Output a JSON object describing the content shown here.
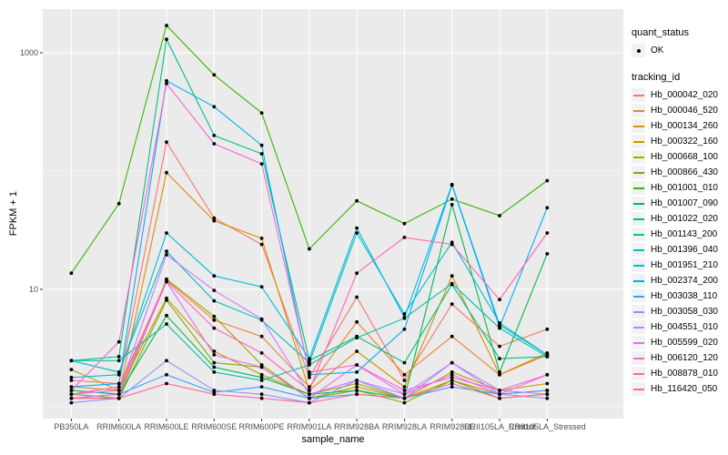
{
  "style": {
    "figure_bg": "#FFFFFF",
    "panel_bg": "#EBEBEB",
    "grid_color": "#FFFFFF",
    "legend_key_bg": "#F2F2F2",
    "tick_label_color": "#4D4D4D",
    "tick_mark_color": "#333333",
    "point_color": "#000000"
  },
  "axes": {
    "y": {
      "title": "FPKM + 1"
    },
    "x": {
      "title": "sample_name"
    }
  },
  "legends": {
    "quant_status": {
      "title": "quant_status",
      "items": [
        {
          "label": "OK",
          "marker": "point",
          "marker_color": "#000000"
        }
      ]
    },
    "tracking_id": {
      "title": "tracking_id"
    }
  },
  "chart_data": {
    "type": "line",
    "title": "",
    "xlabel": "sample_name",
    "ylabel": "FPKM + 1",
    "yscale": "log10",
    "ylim": [
      0.8,
      2400
    ],
    "yticks": [
      10,
      1000
    ],
    "minor_gridlines": [
      1,
      100
    ],
    "grid": true,
    "legend_position": "right",
    "marker": "point-black",
    "x": [
      "PB350LA",
      "RRIM600LA",
      "RRIM600LE",
      "RRIM600SE",
      "RRIM600PE",
      "RRIM901LA",
      "RRIM928BA",
      "RRIM928LA",
      "RRIM928LE",
      "RRII105LA_Control",
      "RRII105LA_Stressed"
    ],
    "series": [
      {
        "name": "Hb_000042_020",
        "color": "#F8766D",
        "values": [
          1.7,
          1.6,
          176,
          40,
          24,
          1.8,
          8.6,
          1.7,
          7.5,
          3.3,
          4.6
        ]
      },
      {
        "name": "Hb_000046_520",
        "color": "#EA8331",
        "values": [
          1.5,
          1.4,
          12,
          5.5,
          4.0,
          1.5,
          5.3,
          1.9,
          4.0,
          1.9,
          2.9
        ]
      },
      {
        "name": "Hb_000134_260",
        "color": "#D89000",
        "values": [
          1.4,
          1.3,
          97,
          38,
          27,
          1.4,
          3.0,
          1.5,
          13,
          1.9,
          2.8
        ]
      },
      {
        "name": "Hb_000322_160",
        "color": "#C09B00",
        "values": [
          2.1,
          1.4,
          8.4,
          3.0,
          1.9,
          1.3,
          1.6,
          1.2,
          2.0,
          1.4,
          1.6
        ]
      },
      {
        "name": "Hb_000668_100",
        "color": "#A3A500",
        "values": [
          1.2,
          1.2,
          12.2,
          5.9,
          2.3,
          1.2,
          1.5,
          1.2,
          1.7,
          1.3,
          1.4
        ]
      },
      {
        "name": "Hb_000866_430",
        "color": "#7CAE00",
        "values": [
          1.3,
          1.2,
          8.1,
          2.4,
          2.2,
          1.2,
          1.4,
          1.1,
          1.7,
          1.2,
          1.3
        ]
      },
      {
        "name": "Hb_001001_010",
        "color": "#39B600",
        "values": [
          13.7,
          53,
          1700,
          650,
          310,
          22,
          56,
          36,
          58,
          42,
          83
        ]
      },
      {
        "name": "Hb_001007_090",
        "color": "#00BB4E",
        "values": [
          1.4,
          1.3,
          6.0,
          2.2,
          1.8,
          1.3,
          1.4,
          1.2,
          52,
          2.0,
          20
        ]
      },
      {
        "name": "Hb_001022_020",
        "color": "#00BF7D",
        "values": [
          2.5,
          2.7,
          1300,
          200,
          140,
          2.5,
          4.0,
          2.4,
          11,
          2.6,
          2.7
        ]
      },
      {
        "name": "Hb_001143_200",
        "color": "#00C1A7",
        "values": [
          2.5,
          2.5,
          5.1,
          2.0,
          1.7,
          2.3,
          3.9,
          5.7,
          11.2,
          4.7,
          2.7
        ]
      },
      {
        "name": "Hb_001396_040",
        "color": "#00BFC4",
        "values": [
          2.5,
          2.0,
          21,
          8.0,
          5.5,
          2.4,
          30,
          6.2,
          25,
          5.2,
          2.8
        ]
      },
      {
        "name": "Hb_001951_210",
        "color": "#00BAE0",
        "values": [
          1.8,
          1.9,
          30,
          13,
          10.5,
          2.6,
          33,
          5.8,
          77,
          5.0,
          2.8
        ]
      },
      {
        "name": "Hb_002374_200",
        "color": "#00B0F6",
        "values": [
          1.5,
          1.6,
          580,
          350,
          165,
          1.9,
          2.0,
          4.6,
          76,
          4.8,
          49
        ]
      },
      {
        "name": "Hb_003038_110",
        "color": "#35A2FF",
        "values": [
          1.2,
          1.3,
          1.9,
          1.35,
          1.5,
          1.2,
          1.3,
          1.2,
          1.5,
          1.3,
          1.4
        ]
      },
      {
        "name": "Hb_003058_030",
        "color": "#9590FF",
        "values": [
          1.1,
          1.2,
          2.5,
          1.4,
          1.3,
          1.1,
          1.7,
          1.2,
          2.4,
          1.3,
          1.2
        ]
      },
      {
        "name": "Hb_004551_010",
        "color": "#C77CFF",
        "values": [
          1.3,
          1.4,
          19.6,
          9.8,
          5.6,
          1.3,
          1.7,
          1.3,
          2.4,
          1.4,
          1.3
        ]
      },
      {
        "name": "Hb_005599_020",
        "color": "#E76BF3",
        "values": [
          1.2,
          1.3,
          11.6,
          2.8,
          2.2,
          1.2,
          2.3,
          1.3,
          1.9,
          1.3,
          1.9
        ]
      },
      {
        "name": "Hb_006120_120",
        "color": "#FA62DB",
        "values": [
          1.4,
          3.6,
          550,
          170,
          115,
          2.0,
          2.3,
          1.4,
          1.8,
          1.4,
          1.9
        ]
      },
      {
        "name": "Hb_008878_010",
        "color": "#FF62BC",
        "values": [
          1.3,
          1.5,
          11.7,
          4.7,
          2.9,
          1.4,
          13.7,
          27.5,
          24,
          8.2,
          30
        ]
      },
      {
        "name": "Hb_116420_050",
        "color": "#FF6A98",
        "values": [
          1.2,
          1.2,
          1.6,
          1.3,
          1.2,
          1.1,
          1.3,
          1.2,
          1.6,
          1.2,
          1.3
        ]
      }
    ]
  }
}
